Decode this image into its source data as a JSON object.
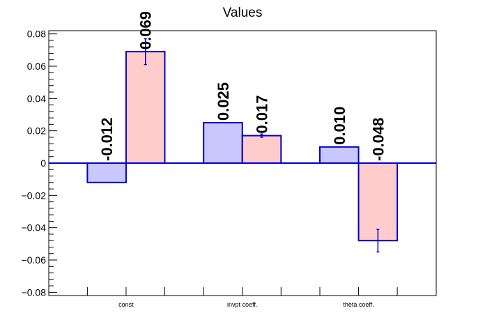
{
  "chart_data": {
    "type": "bar",
    "title": "Values",
    "xlabel": "",
    "ylabel": "",
    "ylim": [
      -0.082,
      0.082
    ],
    "yticks": [
      "0.08",
      "0.06",
      "0.04",
      "0.02",
      "0",
      "−0.02",
      "−0.04",
      "−0.06",
      "−0.08"
    ],
    "ytick_values": [
      0.08,
      0.06,
      0.04,
      0.02,
      0,
      -0.02,
      -0.04,
      -0.06,
      -0.08
    ],
    "categories": [
      "const",
      "invpt coeff.",
      "theta coeff."
    ],
    "series": [
      {
        "color": "#c8c8ff",
        "values": [
          -0.012,
          0.025,
          0.01
        ],
        "errors": [
          null,
          null,
          null
        ],
        "labels": [
          "-0.012",
          "0.025",
          "0.010"
        ]
      },
      {
        "color": "#ffcccc",
        "values": [
          0.069,
          0.017,
          -0.048
        ],
        "errors": [
          0.008,
          0.001,
          0.007
        ],
        "labels": [
          "0.069",
          "0.017",
          "-0.048"
        ]
      }
    ],
    "edge_color": "#0000cc",
    "grid": false,
    "legend": "none"
  }
}
